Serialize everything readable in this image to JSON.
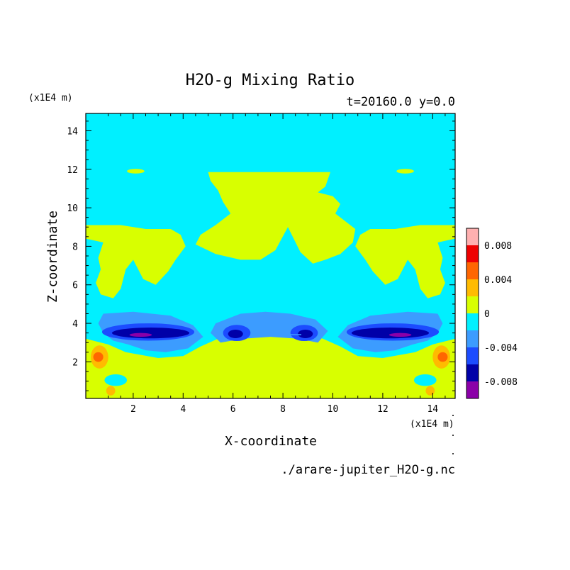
{
  "chart_data": {
    "type": "heatmap",
    "title": "H2O-g Mixing Ratio",
    "subtitle": "t=20160.0 y=0.0",
    "xlabel": "X-coordinate",
    "ylabel": "Z-coordinate",
    "x_unit": "(x1E4 m)",
    "y_unit": "(x1E4 m)",
    "xlim": [
      0.1,
      14.9
    ],
    "ylim": [
      0.1,
      14.9
    ],
    "x_ticks": [
      "2",
      "4",
      "6",
      "8",
      "10",
      "12",
      "14"
    ],
    "y_ticks": [
      "2",
      "4",
      "6",
      "8",
      "10",
      "12",
      "14"
    ],
    "x_tick_values": [
      2,
      4,
      6,
      8,
      10,
      12,
      14
    ],
    "y_tick_values": [
      2,
      4,
      6,
      8,
      10,
      12,
      14
    ],
    "source_file": "./arare-jupiter_H2O-g.nc",
    "colorbar": {
      "levels": [
        -0.01,
        -0.008,
        -0.006,
        -0.004,
        -0.002,
        0,
        0.002,
        0.004,
        0.006,
        0.008,
        0.01
      ],
      "colors": [
        "#8b00a8",
        "#0000a8",
        "#1c4cff",
        "#3c9cff",
        "#00f0ff",
        "#d8ff00",
        "#ffbb00",
        "#ff6600",
        "#ee0000",
        "#ffb0b0"
      ],
      "tick_labels": [
        "0.008",
        "0.004",
        "0",
        "-0.004",
        "-0.008"
      ],
      "tick_values": [
        0.008,
        0.004,
        0,
        -0.004,
        -0.008
      ]
    },
    "background_value": -0.001,
    "regions": [
      {
        "value": 0.001,
        "shape": "poly",
        "points": [
          [
            5.0,
            11.85
          ],
          [
            9.9,
            11.85
          ],
          [
            9.7,
            11.1
          ],
          [
            9.4,
            10.8
          ],
          [
            10.0,
            10.6
          ],
          [
            10.3,
            10.2
          ],
          [
            10.1,
            9.7
          ],
          [
            10.5,
            9.3
          ],
          [
            10.9,
            8.9
          ],
          [
            10.8,
            8.2
          ],
          [
            10.3,
            7.6
          ],
          [
            9.7,
            7.3
          ],
          [
            9.2,
            7.1
          ],
          [
            8.7,
            7.7
          ],
          [
            8.2,
            9.0
          ],
          [
            7.7,
            7.8
          ],
          [
            7.1,
            7.3
          ],
          [
            6.3,
            7.3
          ],
          [
            5.3,
            7.6
          ],
          [
            4.5,
            8.1
          ],
          [
            4.7,
            8.6
          ],
          [
            5.3,
            9.1
          ],
          [
            5.9,
            9.7
          ],
          [
            5.6,
            10.3
          ],
          [
            5.4,
            10.9
          ],
          [
            5.1,
            11.4
          ]
        ]
      },
      {
        "value": 0.001,
        "shape": "poly",
        "points": [
          [
            0.1,
            9.1
          ],
          [
            0.9,
            9.1
          ],
          [
            1.5,
            9.1
          ],
          [
            2.5,
            8.9
          ],
          [
            3.5,
            8.9
          ],
          [
            3.9,
            8.6
          ],
          [
            4.1,
            8.0
          ],
          [
            3.7,
            7.3
          ],
          [
            3.4,
            6.7
          ],
          [
            2.9,
            6.0
          ],
          [
            2.4,
            6.3
          ],
          [
            2.0,
            7.3
          ],
          [
            1.7,
            6.8
          ],
          [
            1.5,
            5.8
          ],
          [
            1.2,
            5.3
          ],
          [
            0.7,
            5.5
          ],
          [
            0.5,
            6.1
          ],
          [
            0.7,
            6.8
          ],
          [
            0.6,
            7.4
          ],
          [
            0.8,
            8.2
          ],
          [
            0.1,
            8.4
          ]
        ]
      },
      {
        "value": 0.001,
        "shape": "poly",
        "points": [
          [
            14.9,
            9.1
          ],
          [
            14.1,
            9.1
          ],
          [
            13.5,
            9.1
          ],
          [
            12.5,
            8.9
          ],
          [
            11.5,
            8.9
          ],
          [
            11.1,
            8.6
          ],
          [
            10.9,
            8.0
          ],
          [
            11.3,
            7.3
          ],
          [
            11.6,
            6.7
          ],
          [
            12.1,
            6.0
          ],
          [
            12.6,
            6.3
          ],
          [
            13.0,
            7.3
          ],
          [
            13.3,
            6.8
          ],
          [
            13.5,
            5.8
          ],
          [
            13.8,
            5.3
          ],
          [
            14.3,
            5.5
          ],
          [
            14.5,
            6.1
          ],
          [
            14.3,
            6.8
          ],
          [
            14.4,
            7.4
          ],
          [
            14.2,
            8.2
          ],
          [
            14.9,
            8.4
          ]
        ]
      },
      {
        "value": 0.001,
        "shape": "ellipse",
        "cx": 2.1,
        "cy": 11.9,
        "rx": 0.35,
        "ry": 0.12
      },
      {
        "value": 0.001,
        "shape": "ellipse",
        "cx": 12.9,
        "cy": 11.9,
        "rx": 0.35,
        "ry": 0.12
      },
      {
        "value": 0.001,
        "shape": "poly",
        "points": [
          [
            0.1,
            0.1
          ],
          [
            14.9,
            0.1
          ],
          [
            14.9,
            3.2
          ],
          [
            14.0,
            2.9
          ],
          [
            13.3,
            2.5
          ],
          [
            12.0,
            2.2
          ],
          [
            11.0,
            2.3
          ],
          [
            10.3,
            2.8
          ],
          [
            9.6,
            3.2
          ],
          [
            8.6,
            3.6
          ],
          [
            7.5,
            3.8
          ],
          [
            6.4,
            3.6
          ],
          [
            5.4,
            3.2
          ],
          [
            4.7,
            2.8
          ],
          [
            4.0,
            2.3
          ],
          [
            3.0,
            2.2
          ],
          [
            1.7,
            2.5
          ],
          [
            1.0,
            2.9
          ],
          [
            0.1,
            3.2
          ]
        ]
      },
      {
        "value": -0.001,
        "shape": "ellipse",
        "cx": 1.3,
        "cy": 1.05,
        "rx": 0.45,
        "ry": 0.3
      },
      {
        "value": -0.001,
        "shape": "ellipse",
        "cx": 13.7,
        "cy": 1.05,
        "rx": 0.45,
        "ry": 0.3
      },
      {
        "value": -0.003,
        "shape": "poly",
        "points": [
          [
            0.8,
            4.5
          ],
          [
            2.0,
            4.6
          ],
          [
            3.5,
            4.4
          ],
          [
            4.4,
            3.9
          ],
          [
            4.8,
            3.3
          ],
          [
            4.2,
            2.7
          ],
          [
            3.3,
            2.5
          ],
          [
            2.5,
            2.6
          ],
          [
            1.8,
            2.9
          ],
          [
            1.2,
            3.1
          ],
          [
            0.8,
            3.5
          ],
          [
            0.6,
            4.0
          ]
        ]
      },
      {
        "value": -0.003,
        "shape": "poly",
        "points": [
          [
            14.2,
            4.5
          ],
          [
            13.0,
            4.6
          ],
          [
            11.5,
            4.4
          ],
          [
            10.6,
            3.9
          ],
          [
            10.2,
            3.3
          ],
          [
            10.8,
            2.7
          ],
          [
            11.7,
            2.5
          ],
          [
            12.5,
            2.6
          ],
          [
            13.2,
            2.9
          ],
          [
            13.8,
            3.1
          ],
          [
            14.2,
            3.5
          ],
          [
            14.4,
            4.0
          ]
        ]
      },
      {
        "value": -0.003,
        "shape": "poly",
        "points": [
          [
            5.3,
            4.0
          ],
          [
            6.3,
            4.5
          ],
          [
            7.3,
            4.6
          ],
          [
            8.3,
            4.5
          ],
          [
            9.3,
            4.2
          ],
          [
            9.8,
            3.6
          ],
          [
            9.4,
            3.0
          ],
          [
            8.6,
            3.2
          ],
          [
            7.5,
            3.3
          ],
          [
            6.4,
            3.2
          ],
          [
            5.5,
            3.0
          ],
          [
            5.1,
            3.5
          ]
        ]
      },
      {
        "value": -0.005,
        "shape": "ellipse",
        "cx": 2.6,
        "cy": 3.55,
        "rx": 1.85,
        "ry": 0.45
      },
      {
        "value": -0.005,
        "shape": "ellipse",
        "cx": 12.4,
        "cy": 3.55,
        "rx": 1.85,
        "ry": 0.45
      },
      {
        "value": -0.005,
        "shape": "ellipse",
        "cx": 6.15,
        "cy": 3.5,
        "rx": 0.55,
        "ry": 0.42
      },
      {
        "value": -0.005,
        "shape": "ellipse",
        "cx": 8.85,
        "cy": 3.5,
        "rx": 0.55,
        "ry": 0.42
      },
      {
        "value": -0.007,
        "shape": "ellipse",
        "cx": 2.7,
        "cy": 3.5,
        "rx": 1.55,
        "ry": 0.28
      },
      {
        "value": -0.007,
        "shape": "ellipse",
        "cx": 12.3,
        "cy": 3.5,
        "rx": 1.55,
        "ry": 0.28
      },
      {
        "value": -0.007,
        "shape": "ellipse",
        "cx": 6.1,
        "cy": 3.45,
        "rx": 0.3,
        "ry": 0.22
      },
      {
        "value": -0.007,
        "shape": "ellipse",
        "cx": 8.9,
        "cy": 3.45,
        "rx": 0.3,
        "ry": 0.22
      },
      {
        "value": -0.009,
        "shape": "ellipse",
        "cx": 2.3,
        "cy": 3.4,
        "rx": 0.45,
        "ry": 0.1
      },
      {
        "value": -0.009,
        "shape": "ellipse",
        "cx": 12.7,
        "cy": 3.4,
        "rx": 0.45,
        "ry": 0.1
      },
      {
        "value": 0.003,
        "shape": "ellipse",
        "cx": 0.65,
        "cy": 2.25,
        "rx": 0.35,
        "ry": 0.6
      },
      {
        "value": 0.003,
        "shape": "ellipse",
        "cx": 14.35,
        "cy": 2.25,
        "rx": 0.35,
        "ry": 0.6
      },
      {
        "value": 0.005,
        "shape": "ellipse",
        "cx": 0.6,
        "cy": 2.25,
        "rx": 0.2,
        "ry": 0.25
      },
      {
        "value": 0.005,
        "shape": "ellipse",
        "cx": 14.4,
        "cy": 2.25,
        "rx": 0.2,
        "ry": 0.25
      },
      {
        "value": 0.003,
        "shape": "ellipse",
        "cx": 1.1,
        "cy": 0.5,
        "rx": 0.18,
        "ry": 0.25
      },
      {
        "value": 0.003,
        "shape": "ellipse",
        "cx": 13.9,
        "cy": 0.5,
        "rx": 0.18,
        "ry": 0.25
      }
    ]
  }
}
